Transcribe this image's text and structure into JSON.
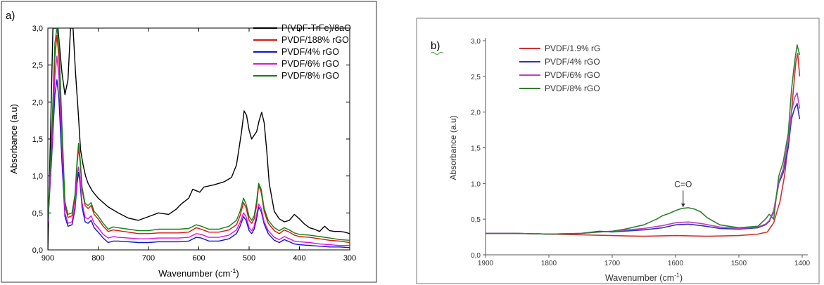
{
  "chart_data": [
    {
      "type": "line",
      "panel_label": "a)",
      "xlabel": "Wavenumber (cm",
      "xlabel_sup": "-1",
      "xlabel_end": ")",
      "ylabel": "Absorbance (a.u)",
      "xlim": [
        900,
        300
      ],
      "ylim": [
        0.0,
        3.0
      ],
      "x_ticks": [
        900,
        800,
        700,
        600,
        500,
        400,
        300
      ],
      "x_tick_labels": [
        "900",
        "800",
        "700",
        "600",
        "500",
        "400",
        "300"
      ],
      "y_ticks": [
        0,
        0.5,
        1.0,
        1.5,
        2.0,
        2.5,
        3.0
      ],
      "y_tick_labels": [
        "0,0",
        "0,5",
        "1,0",
        "1,5",
        "2,0",
        "2,5",
        "3,0"
      ],
      "grid": false,
      "legend_position": "top-right",
      "series": [
        {
          "name": "P(VDF-TrFe)/8aO",
          "color": "#000000",
          "x": [
            900,
            890,
            885,
            880,
            872,
            866,
            860,
            855,
            850,
            845,
            840,
            835,
            830,
            825,
            820,
            812,
            800,
            780,
            760,
            740,
            720,
            700,
            680,
            660,
            645,
            635,
            620,
            612,
            605,
            598,
            590,
            570,
            550,
            535,
            525,
            515,
            510,
            505,
            500,
            495,
            490,
            485,
            480,
            475,
            470,
            465,
            460,
            450,
            440,
            430,
            420,
            410,
            400,
            390,
            380,
            370,
            360,
            350,
            340,
            330,
            320,
            310,
            300
          ],
          "y": [
            0.0,
            3.0,
            3.0,
            3.0,
            2.4,
            2.1,
            2.3,
            3.0,
            3.0,
            2.4,
            1.9,
            1.35,
            1.15,
            1.0,
            0.9,
            0.8,
            0.7,
            0.58,
            0.5,
            0.43,
            0.4,
            0.45,
            0.5,
            0.48,
            0.55,
            0.62,
            0.7,
            0.82,
            0.8,
            0.78,
            0.85,
            0.88,
            0.92,
            0.98,
            1.15,
            1.6,
            1.88,
            1.82,
            1.62,
            1.5,
            1.55,
            1.6,
            1.75,
            1.86,
            1.72,
            1.35,
            0.9,
            0.52,
            0.42,
            0.38,
            0.4,
            0.48,
            0.42,
            0.35,
            0.3,
            0.28,
            0.25,
            0.32,
            0.26,
            0.25,
            0.25,
            0.24,
            0.22
          ]
        },
        {
          "name": "PVDF/188% rGO",
          "color": "#e01010",
          "x": [
            900,
            892,
            886,
            882,
            878,
            872,
            866,
            860,
            852,
            846,
            842,
            839,
            836,
            832,
            826,
            820,
            814,
            808,
            800,
            790,
            780,
            770,
            760,
            740,
            720,
            700,
            680,
            660,
            640,
            620,
            605,
            595,
            580,
            560,
            540,
            525,
            518,
            511,
            506,
            500,
            495,
            490,
            485,
            481,
            476,
            470,
            462,
            450,
            440,
            430,
            420,
            410,
            400,
            380,
            360,
            340,
            320,
            300
          ],
          "y": [
            0.4,
            1.5,
            2.6,
            2.9,
            2.6,
            1.6,
            0.6,
            0.44,
            0.46,
            0.7,
            1.15,
            1.38,
            1.2,
            0.82,
            0.6,
            0.56,
            0.6,
            0.48,
            0.42,
            0.32,
            0.25,
            0.27,
            0.26,
            0.24,
            0.22,
            0.22,
            0.23,
            0.23,
            0.23,
            0.24,
            0.3,
            0.28,
            0.24,
            0.24,
            0.27,
            0.34,
            0.46,
            0.64,
            0.57,
            0.4,
            0.36,
            0.42,
            0.6,
            0.87,
            0.78,
            0.52,
            0.36,
            0.26,
            0.22,
            0.27,
            0.24,
            0.2,
            0.18,
            0.17,
            0.15,
            0.13,
            0.12,
            0.1
          ]
        },
        {
          "name": "PVDF/4% rGO",
          "color": "#1010d0",
          "x": [
            900,
            892,
            886,
            882,
            878,
            872,
            866,
            860,
            852,
            846,
            842,
            839,
            836,
            832,
            826,
            820,
            814,
            808,
            800,
            790,
            780,
            770,
            760,
            740,
            720,
            700,
            680,
            660,
            640,
            620,
            605,
            595,
            580,
            560,
            540,
            525,
            518,
            511,
            506,
            500,
            495,
            490,
            485,
            481,
            476,
            470,
            462,
            450,
            440,
            430,
            420,
            410,
            400,
            380,
            360,
            340,
            320,
            300
          ],
          "y": [
            0.35,
            1.3,
            2.1,
            2.3,
            2.05,
            1.2,
            0.45,
            0.32,
            0.34,
            0.55,
            0.9,
            1.05,
            0.9,
            0.58,
            0.38,
            0.36,
            0.4,
            0.3,
            0.24,
            0.16,
            0.1,
            0.12,
            0.12,
            0.11,
            0.1,
            0.1,
            0.11,
            0.11,
            0.11,
            0.12,
            0.17,
            0.16,
            0.12,
            0.12,
            0.15,
            0.22,
            0.32,
            0.45,
            0.4,
            0.26,
            0.22,
            0.28,
            0.42,
            0.58,
            0.52,
            0.35,
            0.22,
            0.13,
            0.1,
            0.14,
            0.11,
            0.08,
            0.07,
            0.06,
            0.05,
            0.04,
            0.04,
            0.03
          ]
        },
        {
          "name": "PVDF/6% rGO",
          "color": "#e010e0",
          "x": [
            900,
            892,
            886,
            882,
            878,
            872,
            866,
            860,
            852,
            846,
            842,
            839,
            836,
            832,
            826,
            820,
            814,
            808,
            800,
            790,
            780,
            770,
            760,
            740,
            720,
            700,
            680,
            660,
            640,
            620,
            605,
            595,
            580,
            560,
            540,
            525,
            518,
            511,
            506,
            500,
            495,
            490,
            485,
            481,
            476,
            470,
            462,
            450,
            440,
            430,
            420,
            410,
            400,
            380,
            360,
            340,
            320,
            300
          ],
          "y": [
            0.38,
            1.4,
            2.35,
            2.62,
            2.35,
            1.4,
            0.5,
            0.36,
            0.38,
            0.6,
            1.0,
            1.12,
            0.98,
            0.64,
            0.44,
            0.42,
            0.46,
            0.36,
            0.3,
            0.21,
            0.16,
            0.18,
            0.17,
            0.16,
            0.15,
            0.15,
            0.16,
            0.16,
            0.16,
            0.17,
            0.22,
            0.21,
            0.17,
            0.17,
            0.2,
            0.27,
            0.37,
            0.5,
            0.45,
            0.3,
            0.26,
            0.32,
            0.48,
            0.62,
            0.56,
            0.38,
            0.26,
            0.17,
            0.14,
            0.18,
            0.15,
            0.12,
            0.11,
            0.1,
            0.08,
            0.07,
            0.06,
            0.06
          ]
        },
        {
          "name": "PVDF/8% rGO",
          "color": "#108010",
          "x": [
            900,
            892,
            886,
            882,
            878,
            872,
            866,
            860,
            852,
            846,
            842,
            839,
            836,
            832,
            826,
            820,
            814,
            808,
            800,
            790,
            780,
            770,
            760,
            740,
            720,
            700,
            680,
            660,
            640,
            620,
            605,
            595,
            580,
            560,
            540,
            525,
            518,
            511,
            506,
            500,
            495,
            490,
            485,
            481,
            476,
            470,
            462,
            450,
            440,
            430,
            420,
            410,
            400,
            380,
            360,
            340,
            320,
            300
          ],
          "y": [
            0.42,
            1.6,
            2.8,
            3.0,
            2.8,
            1.7,
            0.65,
            0.48,
            0.5,
            0.75,
            1.2,
            1.44,
            1.25,
            0.85,
            0.63,
            0.6,
            0.64,
            0.52,
            0.46,
            0.36,
            0.28,
            0.31,
            0.3,
            0.28,
            0.26,
            0.26,
            0.28,
            0.28,
            0.28,
            0.29,
            0.34,
            0.32,
            0.28,
            0.28,
            0.32,
            0.4,
            0.52,
            0.7,
            0.62,
            0.45,
            0.4,
            0.46,
            0.66,
            0.9,
            0.82,
            0.56,
            0.4,
            0.3,
            0.26,
            0.3,
            0.27,
            0.23,
            0.21,
            0.2,
            0.18,
            0.16,
            0.14,
            0.13
          ]
        }
      ]
    },
    {
      "type": "line",
      "panel_label": "b)",
      "xlabel": "Wavenumber (cm",
      "xlabel_sup": "-1",
      "xlabel_end": ")",
      "ylabel": "Absorbance (a.u)",
      "xlim": [
        1900,
        1400
      ],
      "ylim": [
        0.0,
        3.0
      ],
      "x_ticks": [
        1900,
        1800,
        1700,
        1600,
        1500,
        1400
      ],
      "x_tick_labels": [
        "1900",
        "1800",
        "1700",
        "1600",
        "1500",
        "1400"
      ],
      "y_ticks": [
        0,
        0.5,
        1.0,
        1.5,
        2.0,
        2.5,
        3.0
      ],
      "y_tick_labels": [
        "0,0",
        "0,5",
        "1,0",
        "1,5",
        "2,0",
        "2,5",
        "3,0"
      ],
      "grid": false,
      "legend_position": "top-left",
      "annotation": {
        "text": "C=O",
        "x": 1588,
        "y": 0.95,
        "arrow_to_y": 0.67
      },
      "series": [
        {
          "name": "PVDF/1.9% rG",
          "color": "#d03030",
          "x": [
            1900,
            1850,
            1800,
            1750,
            1700,
            1650,
            1600,
            1550,
            1500,
            1470,
            1455,
            1445,
            1435,
            1428,
            1420,
            1415,
            1410,
            1407,
            1404
          ],
          "y": [
            0.3,
            0.3,
            0.29,
            0.28,
            0.27,
            0.26,
            0.27,
            0.26,
            0.27,
            0.29,
            0.32,
            0.45,
            0.75,
            1.1,
            1.7,
            2.2,
            2.7,
            2.82,
            2.5
          ]
        },
        {
          "name": "PVDF/4% rGO",
          "color": "#3030c0",
          "x": [
            1900,
            1850,
            1800,
            1750,
            1720,
            1700,
            1650,
            1620,
            1600,
            1580,
            1560,
            1530,
            1500,
            1470,
            1458,
            1452,
            1445,
            1437,
            1430,
            1422,
            1417,
            1412,
            1408,
            1404
          ],
          "y": [
            0.3,
            0.3,
            0.29,
            0.3,
            0.33,
            0.32,
            0.35,
            0.38,
            0.42,
            0.43,
            0.41,
            0.37,
            0.36,
            0.38,
            0.42,
            0.47,
            0.6,
            1.0,
            1.15,
            1.5,
            1.9,
            2.05,
            2.12,
            1.9
          ]
        },
        {
          "name": "PVDF/6% rGO",
          "color": "#c040c0",
          "x": [
            1900,
            1850,
            1800,
            1750,
            1720,
            1700,
            1650,
            1620,
            1600,
            1580,
            1560,
            1530,
            1500,
            1470,
            1458,
            1452,
            1445,
            1437,
            1430,
            1422,
            1417,
            1412,
            1408,
            1404
          ],
          "y": [
            0.3,
            0.3,
            0.29,
            0.3,
            0.32,
            0.33,
            0.37,
            0.41,
            0.45,
            0.46,
            0.44,
            0.39,
            0.37,
            0.39,
            0.43,
            0.48,
            0.62,
            1.02,
            1.2,
            1.6,
            2.0,
            2.2,
            2.27,
            2.05
          ]
        },
        {
          "name": "PVDF/8% rGO",
          "color": "#308030",
          "x": [
            1900,
            1850,
            1800,
            1750,
            1720,
            1700,
            1680,
            1650,
            1630,
            1620,
            1610,
            1600,
            1590,
            1580,
            1570,
            1560,
            1550,
            1530,
            1500,
            1470,
            1458,
            1452,
            1445,
            1437,
            1430,
            1422,
            1417,
            1412,
            1408,
            1404
          ],
          "y": [
            0.3,
            0.3,
            0.29,
            0.3,
            0.32,
            0.33,
            0.36,
            0.42,
            0.5,
            0.55,
            0.58,
            0.62,
            0.65,
            0.66,
            0.64,
            0.6,
            0.52,
            0.42,
            0.38,
            0.4,
            0.5,
            0.57,
            0.5,
            1.1,
            1.3,
            1.7,
            2.3,
            2.7,
            2.94,
            2.8
          ]
        }
      ]
    }
  ]
}
